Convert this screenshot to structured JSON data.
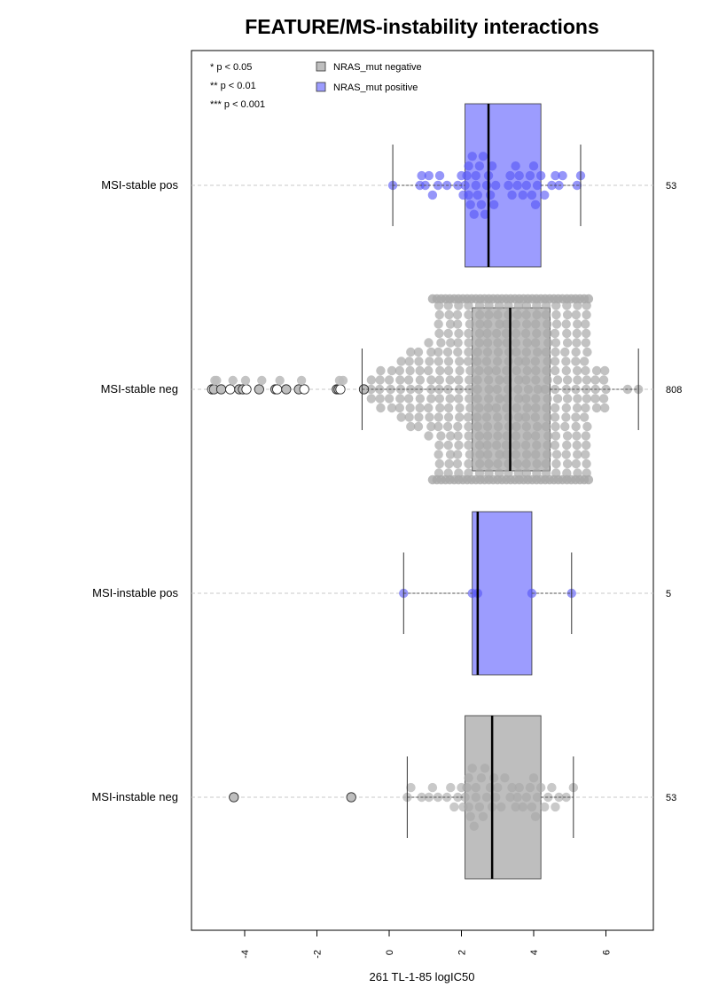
{
  "chart_data": {
    "type": "boxplot-beeswarm",
    "title": "FEATURE/MS-instability interactions",
    "xlabel": "261 TL-1-85 logIC50",
    "xlim": [
      -5.35,
      7.5
    ],
    "xticks": [
      -4,
      -2,
      0,
      2,
      4,
      6
    ],
    "xtick_labels": [
      "-4",
      "-2",
      "0",
      "2",
      "4",
      "6"
    ],
    "grid": "horizontal dashed at each group",
    "legend_placement": "top-left",
    "significance_legend": [
      "* p < 0.05",
      "** p < 0.01",
      "*** p < 0.001"
    ],
    "legend": [
      {
        "label": "NRAS_mut negative",
        "color": "#bebebe"
      },
      {
        "label": "NRAS_mut positive",
        "color": "#9c9cfe"
      }
    ],
    "groups": [
      {
        "label": "MSI-stable pos",
        "n": "53",
        "nras": "positive",
        "box_color": "#9c9cfe",
        "point_color": "#5555f5",
        "whisker_low": 0.1,
        "q1": 2.1,
        "median": 2.75,
        "q3": 4.2,
        "whisker_high": 5.3,
        "outliers": [],
        "points": [
          0.1,
          0.85,
          0.9,
          1.0,
          1.1,
          1.2,
          1.35,
          1.4,
          1.6,
          1.9,
          2.0,
          2.05,
          2.1,
          2.15,
          2.2,
          2.2,
          2.25,
          2.3,
          2.35,
          2.4,
          2.4,
          2.45,
          2.5,
          2.55,
          2.6,
          2.65,
          2.7,
          2.75,
          2.8,
          2.85,
          2.9,
          2.95,
          3.3,
          3.35,
          3.4,
          3.5,
          3.55,
          3.6,
          3.7,
          3.8,
          3.9,
          3.95,
          4.0,
          4.05,
          4.1,
          4.2,
          4.3,
          4.5,
          4.6,
          4.7,
          4.8,
          5.2,
          5.3
        ]
      },
      {
        "label": "MSI-stable neg",
        "n": "808",
        "nras": "negative",
        "box_color": "#bebebe",
        "point_color": "#a8a8a8",
        "whisker_low": -0.75,
        "q1": 2.3,
        "median": 3.35,
        "q3": 4.45,
        "whisker_high": 6.9,
        "outliers": [
          -4.9,
          -4.9,
          -4.85,
          -4.65,
          -4.4,
          -4.15,
          -4.05,
          -3.95,
          -3.6,
          -3.15,
          -3.1,
          -2.85,
          -2.5,
          -2.35,
          -1.45,
          -1.4,
          -1.35,
          -0.7
        ],
        "points": []
      },
      {
        "label": "MSI-instable pos",
        "n": "5",
        "nras": "positive",
        "box_color": "#9c9cfe",
        "point_color": "#5555f5",
        "whisker_low": 0.4,
        "q1": 2.3,
        "median": 2.45,
        "q3": 3.95,
        "whisker_high": 5.05,
        "outliers": [],
        "points": [
          0.4,
          2.3,
          2.45,
          3.95,
          5.05
        ]
      },
      {
        "label": "MSI-instable neg",
        "n": "53",
        "nras": "negative",
        "box_color": "#bebebe",
        "point_color": "#a8a8a8",
        "whisker_low": 0.5,
        "q1": 2.1,
        "median": 2.85,
        "q3": 4.2,
        "whisker_high": 5.1,
        "outliers": [
          -4.3,
          -1.05
        ],
        "points": [
          0.5,
          0.6,
          0.9,
          1.1,
          1.2,
          1.35,
          1.6,
          1.7,
          1.8,
          1.9,
          2.0,
          2.05,
          2.1,
          2.15,
          2.2,
          2.2,
          2.25,
          2.3,
          2.35,
          2.4,
          2.4,
          2.5,
          2.55,
          2.6,
          2.65,
          2.7,
          2.8,
          2.85,
          2.9,
          2.95,
          3.0,
          3.1,
          3.2,
          3.35,
          3.4,
          3.5,
          3.55,
          3.6,
          3.7,
          3.8,
          3.9,
          3.95,
          4.0,
          4.05,
          4.1,
          4.2,
          4.3,
          4.4,
          4.5,
          4.6,
          4.7,
          4.9,
          5.1
        ]
      }
    ]
  }
}
